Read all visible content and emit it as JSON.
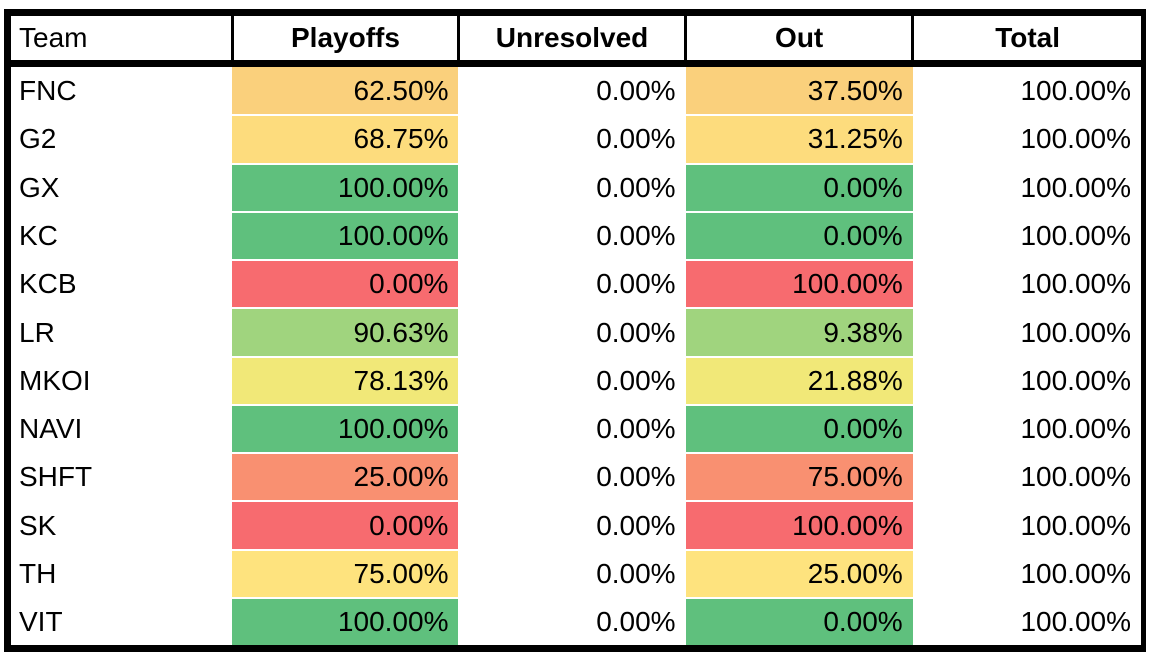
{
  "page": {
    "background_color": "#ffffff",
    "border_color": "#000000",
    "text_color": "#000000"
  },
  "table": {
    "columns": [
      {
        "id": "team",
        "label": "Team",
        "align": "left",
        "bold": false
      },
      {
        "id": "playoffs",
        "label": "Playoffs",
        "align": "center",
        "bold": true
      },
      {
        "id": "unresolved",
        "label": "Unresolved",
        "align": "center",
        "bold": true
      },
      {
        "id": "out",
        "label": "Out",
        "align": "center",
        "bold": true
      },
      {
        "id": "total",
        "label": "Total",
        "align": "center",
        "bold": true
      }
    ],
    "rows": [
      {
        "team": "FNC",
        "playoffs": "62.50%",
        "unresolved": "0.00%",
        "out": "37.50%",
        "total": "100.00%",
        "playoffs_bg": "#FAD07C",
        "out_bg": "#FAD07C"
      },
      {
        "team": "G2",
        "playoffs": "68.75%",
        "unresolved": "0.00%",
        "out": "31.25%",
        "total": "100.00%",
        "playoffs_bg": "#FDDC7D",
        "out_bg": "#FDDC7D"
      },
      {
        "team": "GX",
        "playoffs": "100.00%",
        "unresolved": "0.00%",
        "out": "0.00%",
        "total": "100.00%",
        "playoffs_bg": "#5FC07D",
        "out_bg": "#5FC07D"
      },
      {
        "team": "KC",
        "playoffs": "100.00%",
        "unresolved": "0.00%",
        "out": "0.00%",
        "total": "100.00%",
        "playoffs_bg": "#5FC07D",
        "out_bg": "#5FC07D"
      },
      {
        "team": "KCB",
        "playoffs": "0.00%",
        "unresolved": "0.00%",
        "out": "100.00%",
        "total": "100.00%",
        "playoffs_bg": "#F76B6F",
        "out_bg": "#F76B6F"
      },
      {
        "team": "LR",
        "playoffs": "90.63%",
        "unresolved": "0.00%",
        "out": "9.38%",
        "total": "100.00%",
        "playoffs_bg": "#A0D47E",
        "out_bg": "#A0D47E"
      },
      {
        "team": "MKOI",
        "playoffs": "78.13%",
        "unresolved": "0.00%",
        "out": "21.88%",
        "total": "100.00%",
        "playoffs_bg": "#F1E878",
        "out_bg": "#F1E878"
      },
      {
        "team": "NAVI",
        "playoffs": "100.00%",
        "unresolved": "0.00%",
        "out": "0.00%",
        "total": "100.00%",
        "playoffs_bg": "#5FC07D",
        "out_bg": "#5FC07D"
      },
      {
        "team": "SHFT",
        "playoffs": "25.00%",
        "unresolved": "0.00%",
        "out": "75.00%",
        "total": "100.00%",
        "playoffs_bg": "#F99071",
        "out_bg": "#F99071"
      },
      {
        "team": "SK",
        "playoffs": "0.00%",
        "unresolved": "0.00%",
        "out": "100.00%",
        "total": "100.00%",
        "playoffs_bg": "#F76B6F",
        "out_bg": "#F76B6F"
      },
      {
        "team": "TH",
        "playoffs": "75.00%",
        "unresolved": "0.00%",
        "out": "25.00%",
        "total": "100.00%",
        "playoffs_bg": "#FEE37E",
        "out_bg": "#FEE37E"
      },
      {
        "team": "VIT",
        "playoffs": "100.00%",
        "unresolved": "0.00%",
        "out": "0.00%",
        "total": "100.00%",
        "playoffs_bg": "#5FC07D",
        "out_bg": "#5FC07D"
      }
    ],
    "conditional_format": {
      "scale": "red-yellow-green",
      "red": "#F76B6F",
      "salmon": "#F99071",
      "orange_yellow": "#FAD07C",
      "yellow": "#FEE37E",
      "pale_yellow_green": "#F1E878",
      "light_green": "#A0D47E",
      "green": "#5FC07D"
    }
  },
  "chart_data": {
    "type": "table",
    "title": "",
    "columns": [
      "Team",
      "Playoffs",
      "Unresolved",
      "Out",
      "Total"
    ],
    "categories": [
      "FNC",
      "G2",
      "GX",
      "KC",
      "KCB",
      "LR",
      "MKOI",
      "NAVI",
      "SHFT",
      "SK",
      "TH",
      "VIT"
    ],
    "series": [
      {
        "name": "Playoffs",
        "values": [
          62.5,
          68.75,
          100.0,
          100.0,
          0.0,
          90.63,
          78.13,
          100.0,
          25.0,
          0.0,
          75.0,
          100.0
        ],
        "unit": "%"
      },
      {
        "name": "Unresolved",
        "values": [
          0.0,
          0.0,
          0.0,
          0.0,
          0.0,
          0.0,
          0.0,
          0.0,
          0.0,
          0.0,
          0.0,
          0.0
        ],
        "unit": "%"
      },
      {
        "name": "Out",
        "values": [
          37.5,
          31.25,
          0.0,
          0.0,
          100.0,
          9.38,
          21.88,
          0.0,
          75.0,
          100.0,
          25.0,
          0.0
        ],
        "unit": "%"
      },
      {
        "name": "Total",
        "values": [
          100.0,
          100.0,
          100.0,
          100.0,
          100.0,
          100.0,
          100.0,
          100.0,
          100.0,
          100.0,
          100.0,
          100.0
        ],
        "unit": "%"
      }
    ],
    "layout": {
      "header_bold_except_first": true,
      "value_alignment": "right",
      "color_scale_applied_to": [
        "Playoffs",
        "Out"
      ],
      "out_column_color_mirrors_playoffs": true
    }
  }
}
